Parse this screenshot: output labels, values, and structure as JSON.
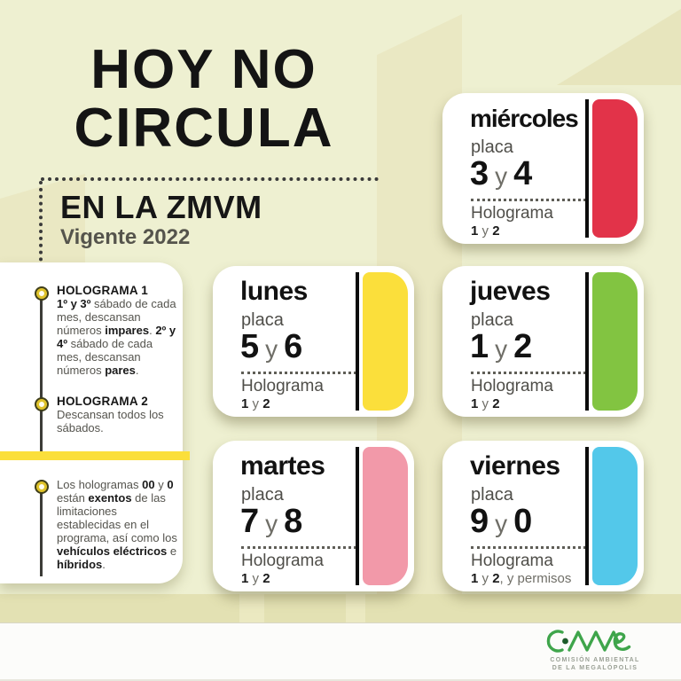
{
  "poster": {
    "title_line1": "HOY NO",
    "title_line2": "CIRCULA",
    "region": "EN LA ZMVM",
    "validity": "Vigente 2022"
  },
  "legend": {
    "sections": [
      {
        "heading": "HOLOGRAMA 1",
        "body": [
          {
            "t": "1º y 3º",
            "b": true
          },
          {
            "t": " sábado de cada mes, descansan números ",
            "b": false
          },
          {
            "t": "impares",
            "b": true
          },
          {
            "t": ". ",
            "b": false
          },
          {
            "t": "2º y 4º",
            "b": true
          },
          {
            "t": " sábado de cada mes, descansan números ",
            "b": false
          },
          {
            "t": "pares",
            "b": true
          },
          {
            "t": ".",
            "b": false
          }
        ]
      },
      {
        "heading": "HOLOGRAMA 2",
        "body": [
          {
            "t": "Descansan todos los sábados.",
            "b": false
          }
        ]
      },
      {
        "heading": "",
        "body": [
          {
            "t": "Los hologramas ",
            "b": false
          },
          {
            "t": "00",
            "b": true
          },
          {
            "t": " y ",
            "b": false
          },
          {
            "t": "0",
            "b": true
          },
          {
            "t": " están ",
            "b": false
          },
          {
            "t": "exentos",
            "b": true
          },
          {
            "t": " de las limitaciones establecidas en el programa, así como los ",
            "b": false
          },
          {
            "t": "vehículos eléctricos",
            "b": true
          },
          {
            "t": " e ",
            "b": false
          },
          {
            "t": "híbridos",
            "b": true
          },
          {
            "t": ".",
            "b": false
          }
        ]
      }
    ]
  },
  "cards": [
    {
      "day": "miércoles",
      "placa_label": "placa",
      "plate1": "3",
      "joiner": "y",
      "plate2": "4",
      "holo_label": "Holograma",
      "holo": [
        {
          "t": "1",
          "b": true
        },
        {
          "t": " y ",
          "b": false
        },
        {
          "t": "2",
          "b": true
        }
      ],
      "color": "#e23349"
    },
    {
      "day": "lunes",
      "placa_label": "placa",
      "plate1": "5",
      "joiner": "y",
      "plate2": "6",
      "holo_label": "Holograma",
      "holo": [
        {
          "t": "1",
          "b": true
        },
        {
          "t": " y ",
          "b": false
        },
        {
          "t": "2",
          "b": true
        }
      ],
      "color": "#fbdf3b"
    },
    {
      "day": "jueves",
      "placa_label": "placa",
      "plate1": "1",
      "joiner": "y",
      "plate2": "2",
      "holo_label": "Holograma",
      "holo": [
        {
          "t": "1",
          "b": true
        },
        {
          "t": " y ",
          "b": false
        },
        {
          "t": "2",
          "b": true
        }
      ],
      "color": "#82c441"
    },
    {
      "day": "martes",
      "placa_label": "placa",
      "plate1": "7",
      "joiner": "y",
      "plate2": "8",
      "holo_label": "Holograma",
      "holo": [
        {
          "t": "1",
          "b": true
        },
        {
          "t": " y ",
          "b": false
        },
        {
          "t": "2",
          "b": true
        }
      ],
      "color": "#f299a9"
    },
    {
      "day": "viernes",
      "placa_label": "placa",
      "plate1": "9",
      "joiner": "y",
      "plate2": "0",
      "holo_label": "Holograma",
      "holo": [
        {
          "t": "1",
          "b": true
        },
        {
          "t": " y ",
          "b": false
        },
        {
          "t": "2",
          "b": true
        },
        {
          "t": ", y permisos",
          "b": false
        }
      ],
      "color": "#53c8ea"
    }
  ],
  "footer": {
    "logo_name": "CAMe",
    "org_line1": "COMISIÓN AMBIENTAL",
    "org_line2": "DE LA MEGALÓPOLIS"
  },
  "colors": {
    "background": "#eef0d1",
    "divider_yellow": "#fbdf3b",
    "card_red": "#e23349",
    "card_yellow": "#fbdf3b",
    "card_green": "#82c441",
    "card_pink": "#f299a9",
    "card_cyan": "#53c8ea",
    "logo_green": "#3fa54b"
  }
}
